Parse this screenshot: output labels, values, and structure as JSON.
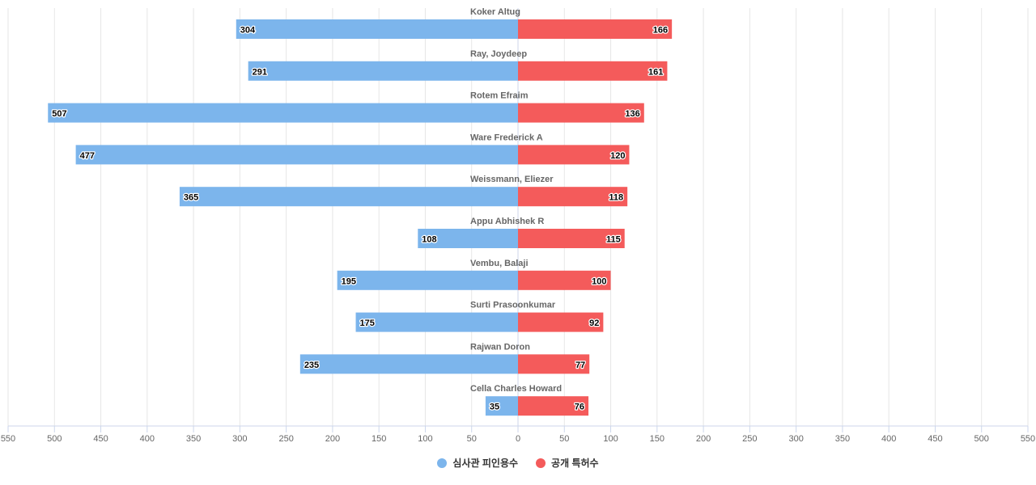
{
  "chart_data": {
    "type": "bar",
    "orientation": "horizontal-diverging",
    "categories": [
      "Koker Altug",
      "Ray, Joydeep",
      "Rotem Efraim",
      "Ware Frederick A",
      "Weissmann, Eliezer",
      "Appu Abhishek R",
      "Vembu, Balaji",
      "Surti Prasoonkumar",
      "Rajwan Doron",
      "Cella Charles Howard"
    ],
    "series": [
      {
        "name": "심사관 피인용수",
        "color": "#7cb5ec",
        "direction": "left",
        "values": [
          304,
          291,
          507,
          477,
          365,
          108,
          195,
          175,
          235,
          35
        ]
      },
      {
        "name": "공개 특허수",
        "color": "#f45b5b",
        "direction": "right",
        "values": [
          166,
          161,
          136,
          120,
          118,
          115,
          100,
          92,
          77,
          76
        ]
      }
    ],
    "xlim": [
      -550,
      550
    ],
    "xticks": [
      "550",
      "500",
      "450",
      "400",
      "350",
      "300",
      "250",
      "200",
      "150",
      "100",
      "50",
      "0",
      "50",
      "100",
      "150",
      "200",
      "250",
      "300",
      "350",
      "400",
      "450",
      "500",
      "550"
    ],
    "grid": true,
    "legend_position": "bottom"
  }
}
